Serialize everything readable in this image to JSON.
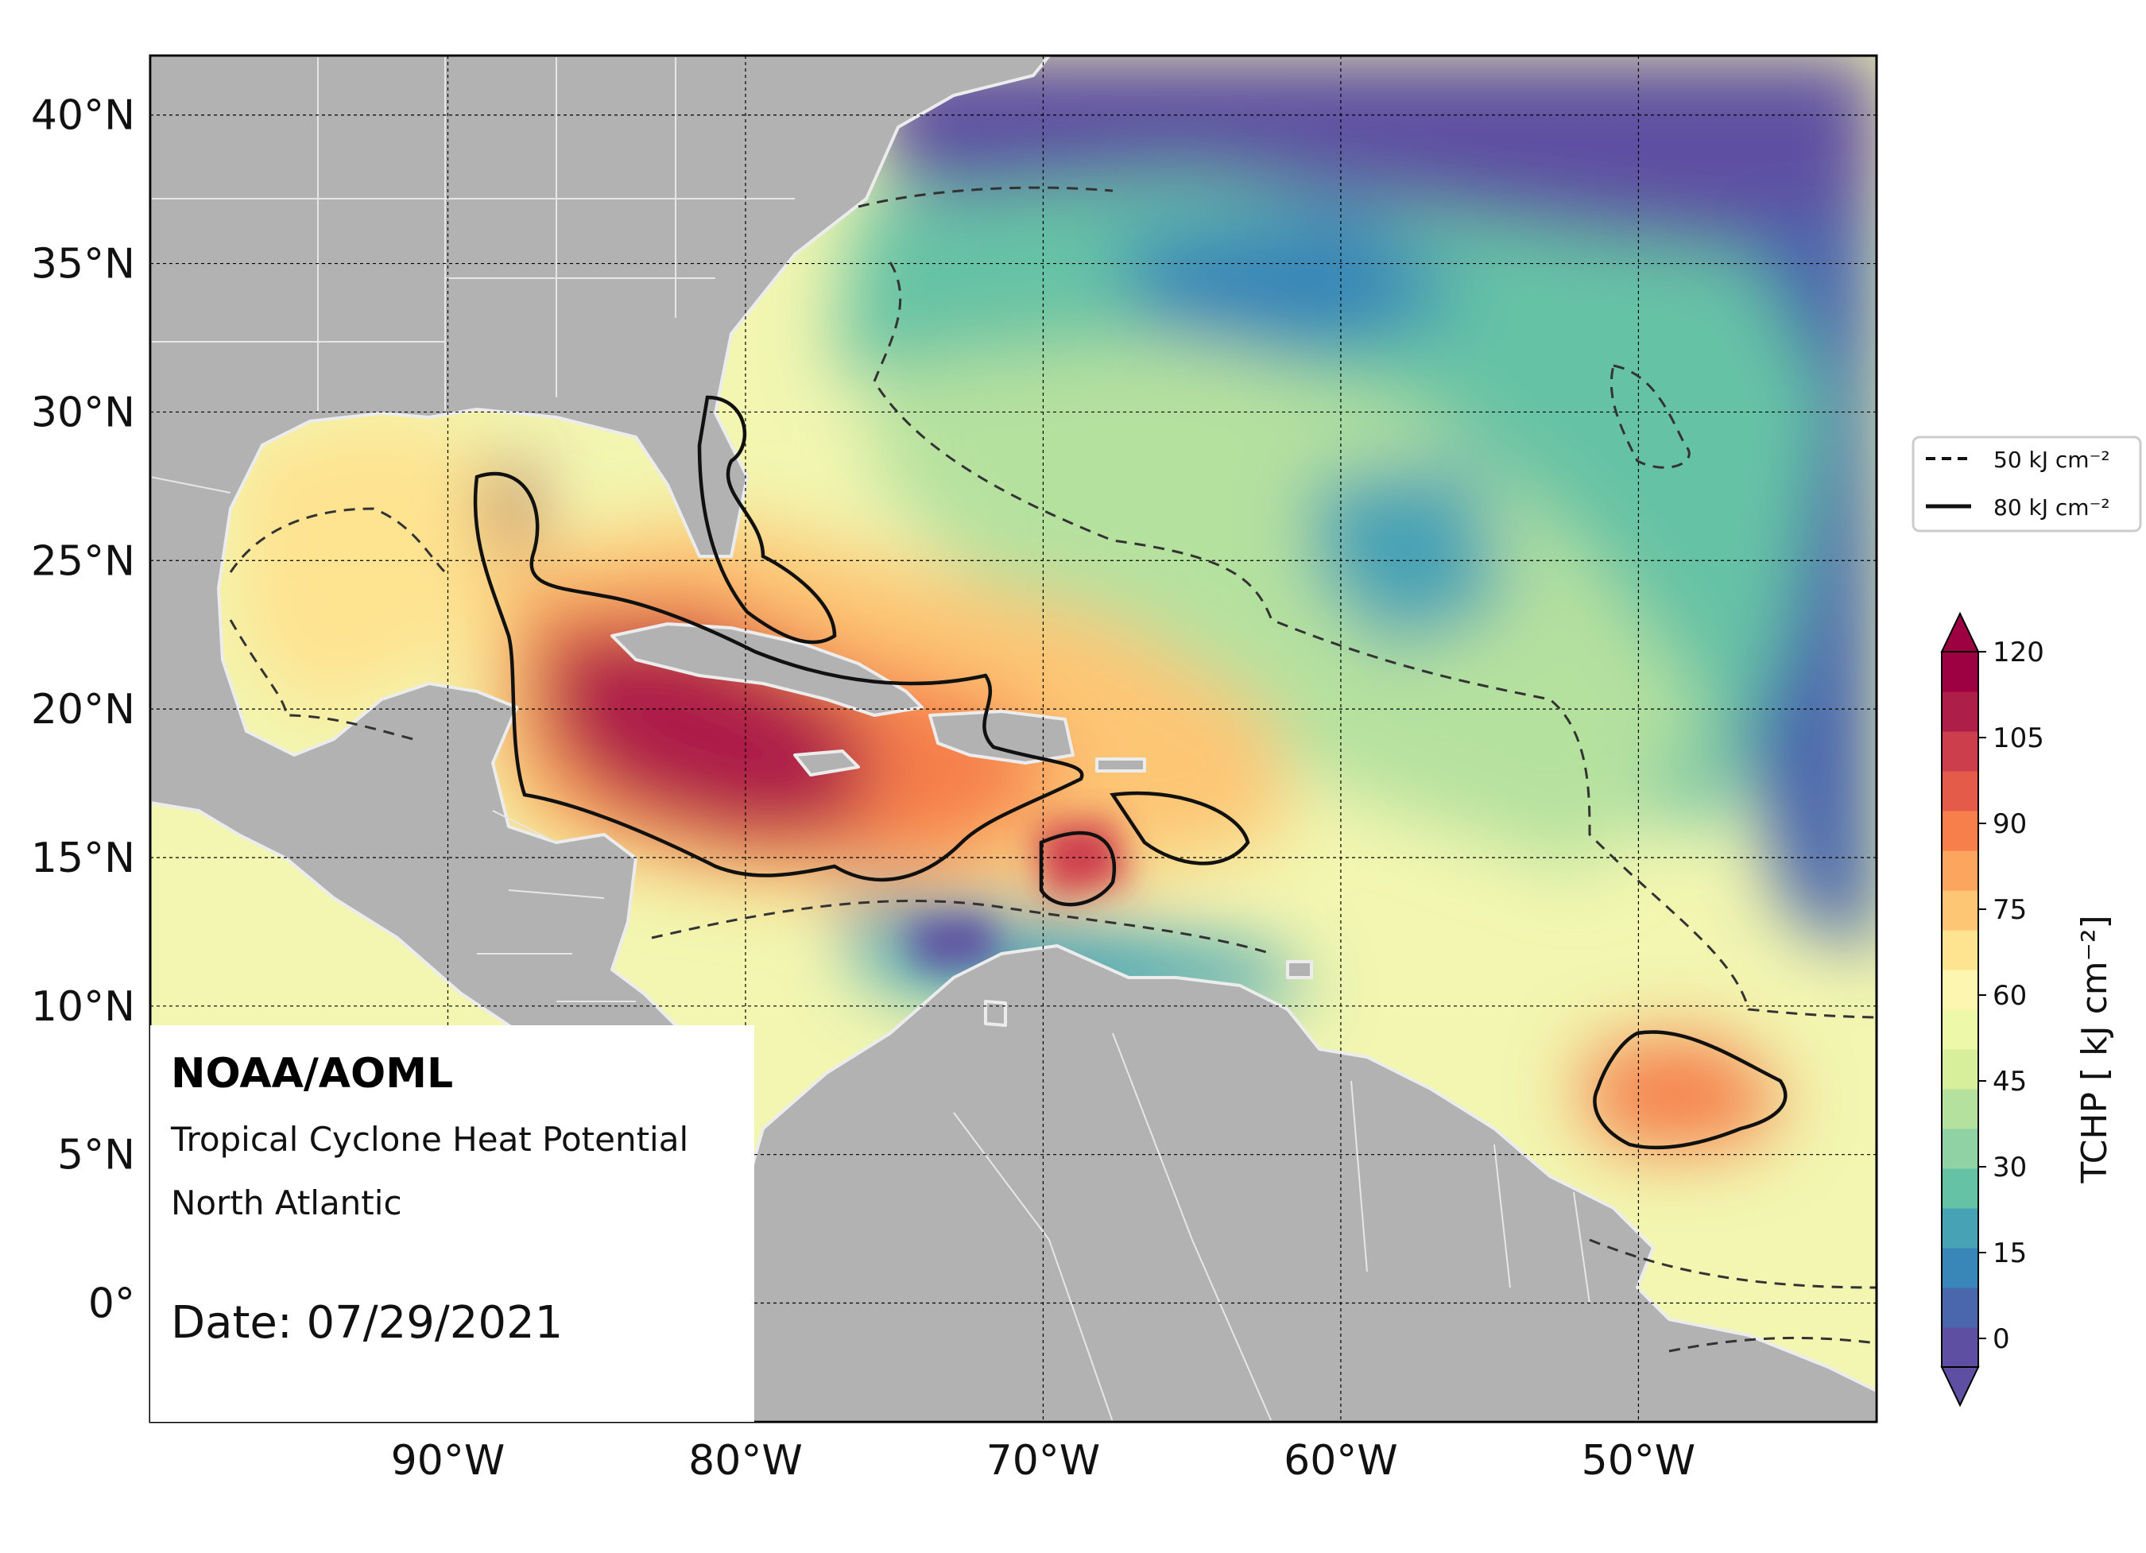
{
  "map": {
    "lon_range": [
      -100,
      -42
    ],
    "lat_range": [
      -4,
      42
    ],
    "lon_ticks": [
      {
        "value": -90,
        "label": "90°W"
      },
      {
        "value": -80,
        "label": "80°W"
      },
      {
        "value": -70,
        "label": "70°W"
      },
      {
        "value": -60,
        "label": "60°W"
      },
      {
        "value": -50,
        "label": "50°W"
      }
    ],
    "lat_ticks": [
      {
        "value": 40,
        "label": "40°N"
      },
      {
        "value": 35,
        "label": "35°N"
      },
      {
        "value": 30,
        "label": "30°N"
      },
      {
        "value": 25,
        "label": "25°N"
      },
      {
        "value": 20,
        "label": "20°N"
      },
      {
        "value": 15,
        "label": "15°N"
      },
      {
        "value": 10,
        "label": "10°N"
      },
      {
        "value": 5,
        "label": "5°N"
      },
      {
        "value": 0,
        "label": "0°"
      }
    ],
    "grid": true,
    "land_color": "#b2b2b2",
    "coast_color": "#e8e8e8"
  },
  "info_box": {
    "org": "NOAA/AOML",
    "product": "Tropical Cyclone Heat Potential",
    "region": "North Atlantic",
    "date": "Date: 07/29/2021"
  },
  "legend": {
    "placement": "right",
    "items": [
      {
        "label": "50 kJ cm⁻²",
        "style": "dashed"
      },
      {
        "label": "80 kJ cm⁻²",
        "style": "solid"
      }
    ]
  },
  "colorbar": {
    "label": "TCHP [ kJ cm⁻²]",
    "range": [
      -5,
      120
    ],
    "ticks": [
      {
        "value": 120,
        "label": "120"
      },
      {
        "value": 105,
        "label": "105"
      },
      {
        "value": 90,
        "label": "90"
      },
      {
        "value": 75,
        "label": "75"
      },
      {
        "value": 60,
        "label": "60"
      },
      {
        "value": 45,
        "label": "45"
      },
      {
        "value": 30,
        "label": "30"
      },
      {
        "value": 15,
        "label": "15"
      },
      {
        "value": 0,
        "label": "0"
      }
    ],
    "colors": [
      "#5e4fa2",
      "#4a66ad",
      "#3986b8",
      "#47a2b5",
      "#66c2a5",
      "#90d2a4",
      "#b5e19f",
      "#d7ef9b",
      "#eef8a9",
      "#fdf6b1",
      "#fee391",
      "#fdc675",
      "#fba55e",
      "#f67f4b",
      "#e45c49",
      "#cd3e4d",
      "#ad1e49",
      "#9e0142"
    ]
  }
}
